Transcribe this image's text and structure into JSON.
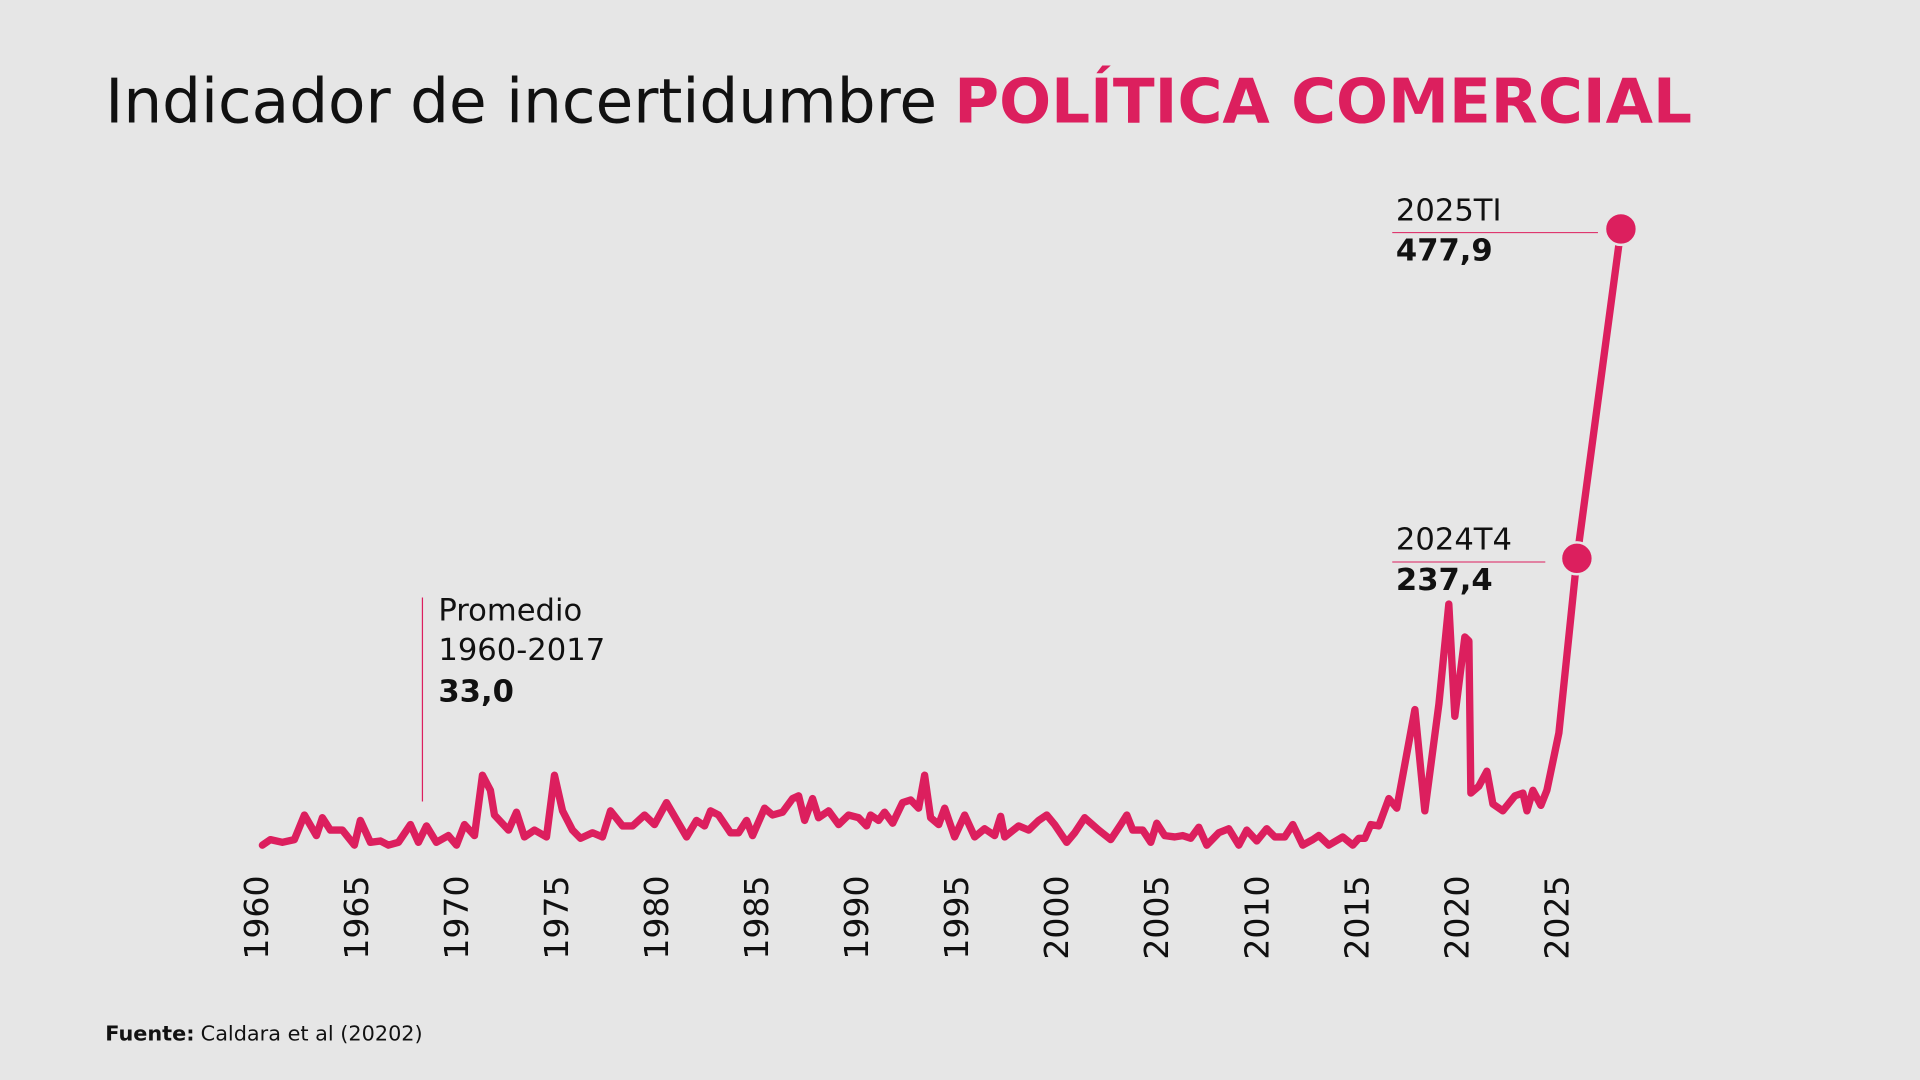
{
  "chart_data": {
    "type": "line",
    "title": "Indicador de incertidumbre",
    "title_highlight": "POLÍTICA COMERCIAL",
    "source_label": "Fuente:",
    "source": "Caldara et al (20202)",
    "color": "#dc1f5e",
    "xlim": [
      1960,
      2030
    ],
    "xticks": [
      1960,
      1965,
      1970,
      1975,
      1980,
      1985,
      1990,
      1995,
      2000,
      2005,
      2010,
      2015,
      2020,
      2025
    ],
    "ylim": [
      0,
      500
    ],
    "grid": false,
    "series": [
      {
        "name": "Indicador de incertidumbre",
        "color": "#dc1f5e",
        "x": [
          1960.2,
          1960.6,
          1961.2,
          1961.8,
          1962.3,
          1962.9,
          1963.2,
          1963.6,
          1964.2,
          1964.8,
          1965.1,
          1965.6,
          1966.1,
          1966.5,
          1967.0,
          1967.6,
          1968.0,
          1968.4,
          1968.9,
          1969.5,
          1969.9,
          1970.3,
          1970.8,
          1971.2,
          1971.6,
          1971.8,
          1972.5,
          1972.9,
          1973.3,
          1973.8,
          1974.4,
          1974.8,
          1975.2,
          1975.7,
          1976.1,
          1976.7,
          1977.2,
          1977.6,
          1978.2,
          1978.7,
          1979.3,
          1979.8,
          1980.4,
          1981.4,
          1981.9,
          1982.3,
          1982.6,
          1983.0,
          1983.6,
          1984.0,
          1984.4,
          1984.7,
          1985.3,
          1985.7,
          1986.2,
          1986.7,
          1987.0,
          1987.3,
          1987.7,
          1988.0,
          1988.5,
          1989.0,
          1989.5,
          1990.0,
          1990.4,
          1990.6,
          1991.0,
          1991.3,
          1991.7,
          1992.2,
          1992.6,
          1993.0,
          1993.3,
          1993.6,
          1994.0,
          1994.3,
          1994.8,
          1995.3,
          1995.8,
          1996.3,
          1996.8,
          1997.1,
          1997.3,
          1998.0,
          1998.5,
          1999.0,
          1999.4,
          1999.8,
          2000.4,
          2000.8,
          2001.3,
          2002.0,
          2002.6,
          2003.1,
          2003.4,
          2003.7,
          2004.2,
          2004.6,
          2004.9,
          2005.3,
          2005.8,
          2006.2,
          2006.6,
          2007.0,
          2007.4,
          2008.0,
          2008.5,
          2009.0,
          2009.4,
          2009.9,
          2010.4,
          2010.8,
          2011.3,
          2011.7,
          2012.2,
          2012.7,
          2013.0,
          2013.5,
          2014.2,
          2014.7,
          2015.0,
          2015.3,
          2015.6,
          2016.0,
          2016.5,
          2016.9,
          2017.8,
          2018.3,
          2019.0,
          2019.5,
          2019.8,
          2020.3,
          2020.5,
          2020.6,
          2021.0,
          2021.4,
          2021.7,
          2022.2,
          2022.8,
          2023.2,
          2023.4,
          2023.7,
          2024.1,
          2024.4,
          2025.0,
          2025.9,
          2028.1
        ],
        "values": [
          28,
          32,
          30,
          32,
          50,
          35,
          48,
          39,
          39,
          28,
          46,
          30,
          31,
          28,
          30,
          43,
          30,
          42,
          30,
          35,
          28,
          43,
          35,
          79,
          68,
          50,
          39,
          52,
          34,
          39,
          34,
          79,
          53,
          39,
          33,
          37,
          34,
          53,
          42,
          42,
          50,
          43,
          59,
          34,
          46,
          42,
          53,
          50,
          37,
          37,
          46,
          35,
          55,
          50,
          52,
          62,
          64,
          46,
          62,
          48,
          53,
          43,
          50,
          48,
          42,
          50,
          46,
          52,
          44,
          59,
          61,
          55,
          79,
          48,
          43,
          55,
          34,
          50,
          34,
          40,
          35,
          49,
          34,
          42,
          39,
          46,
          50,
          43,
          30,
          37,
          48,
          39,
          32,
          43,
          50,
          39,
          39,
          30,
          44,
          35,
          34,
          35,
          33,
          41,
          28,
          37,
          40,
          28,
          39,
          31,
          40,
          34,
          34,
          43,
          28,
          32,
          35,
          28,
          34,
          28,
          33,
          33,
          43,
          42,
          62,
          55,
          127,
          53,
          131,
          204,
          122,
          180,
          177,
          66,
          71,
          82,
          58,
          53,
          64,
          66,
          53,
          68,
          57,
          68,
          110,
          237.4,
          477.9
        ]
      }
    ],
    "annotations": [
      {
        "label": "2025TI",
        "x": 2028.1,
        "value": 477.9,
        "value_label": "477,9"
      },
      {
        "label": "2024T4",
        "x": 2025.9,
        "value": 237.4,
        "value_label": "237,4"
      }
    ],
    "average": {
      "label_lines": [
        "Promedio",
        "1960-2017"
      ],
      "x": 1968.2,
      "value": 33.0,
      "value_label": "33,0"
    }
  }
}
